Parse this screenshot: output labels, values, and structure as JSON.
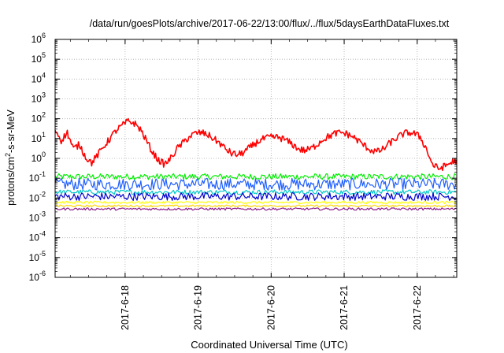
{
  "chart_data": {
    "type": "line",
    "title": "/data/run/goesPlots/archive/2017-06-22/13:00/flux/../flux/5daysEarthDataFluxes.txt",
    "xlabel": "Coordinated Universal Time (UTC)",
    "ylabel": "protons/cm²-s-sr-MeV",
    "ylabel_parts": {
      "before": "protons/cm",
      "sup": "2",
      "after": "-s-sr-MeV"
    },
    "y_scale": "log",
    "ylim": [
      1e-06,
      1000000.0
    ],
    "y_tick_labels": [
      {
        "base": "10",
        "exp": "-6",
        "value": 1e-06
      },
      {
        "base": "10",
        "exp": "-5",
        "value": 1e-05
      },
      {
        "base": "10",
        "exp": "-4",
        "value": 0.0001
      },
      {
        "base": "10",
        "exp": "-3",
        "value": 0.001
      },
      {
        "base": "10",
        "exp": "-2",
        "value": 0.01
      },
      {
        "base": "10",
        "exp": "-1",
        "value": 0.1
      },
      {
        "base": "10",
        "exp": "0",
        "value": 1
      },
      {
        "base": "10",
        "exp": "1",
        "value": 10
      },
      {
        "base": "10",
        "exp": "2",
        "value": 100
      },
      {
        "base": "10",
        "exp": "3",
        "value": 1000
      },
      {
        "base": "10",
        "exp": "4",
        "value": 10000
      },
      {
        "base": "10",
        "exp": "5",
        "value": 100000
      },
      {
        "base": "10",
        "exp": "6",
        "value": 1000000
      }
    ],
    "xlim": [
      "2017-06-17T01:00",
      "2017-06-22T13:00"
    ],
    "x_tick_labels": [
      {
        "label": "2017-6-18",
        "time": "2017-06-18T00:00"
      },
      {
        "label": "2017-6-19",
        "time": "2017-06-19T00:00"
      },
      {
        "label": "2017-6-20",
        "time": "2017-06-20T00:00"
      },
      {
        "label": "2017-6-21",
        "time": "2017-06-21T00:00"
      },
      {
        "label": "2017-6-22",
        "time": "2017-06-22T00:00"
      }
    ],
    "grid": true,
    "series": [
      {
        "color": "#ff0000",
        "points": [
          [
            "2017-06-17T01:00",
            30
          ],
          [
            "2017-06-17T03:00",
            8
          ],
          [
            "2017-06-17T05:00",
            20
          ],
          [
            "2017-06-17T07:00",
            3
          ],
          [
            "2017-06-17T09:00",
            5
          ],
          [
            "2017-06-17T11:00",
            1.2
          ],
          [
            "2017-06-17T13:00",
            0.6
          ],
          [
            "2017-06-17T15:00",
            1.5
          ],
          [
            "2017-06-17T17:00",
            4
          ],
          [
            "2017-06-17T19:00",
            10
          ],
          [
            "2017-06-17T21:00",
            25
          ],
          [
            "2017-06-17T23:00",
            45
          ],
          [
            "2017-06-18T01:00",
            75
          ],
          [
            "2017-06-18T03:00",
            60
          ],
          [
            "2017-06-18T05:00",
            30
          ],
          [
            "2017-06-18T07:00",
            8
          ],
          [
            "2017-06-18T09:00",
            2
          ],
          [
            "2017-06-18T11:00",
            0.8
          ],
          [
            "2017-06-18T13:00",
            0.5
          ],
          [
            "2017-06-18T15:00",
            1
          ],
          [
            "2017-06-18T17:00",
            3
          ],
          [
            "2017-06-18T19:00",
            6
          ],
          [
            "2017-06-18T21:00",
            12
          ],
          [
            "2017-06-18T23:00",
            18
          ],
          [
            "2017-06-19T01:00",
            20
          ],
          [
            "2017-06-19T03:00",
            16
          ],
          [
            "2017-06-19T05:00",
            10
          ],
          [
            "2017-06-19T07:00",
            6
          ],
          [
            "2017-06-19T09:00",
            3
          ],
          [
            "2017-06-19T11:00",
            1.8
          ],
          [
            "2017-06-19T13:00",
            1.5
          ],
          [
            "2017-06-19T15:00",
            2
          ],
          [
            "2017-06-19T17:00",
            3.5
          ],
          [
            "2017-06-19T19:00",
            6
          ],
          [
            "2017-06-19T21:00",
            9
          ],
          [
            "2017-06-19T23:00",
            11
          ],
          [
            "2017-06-20T01:00",
            12
          ],
          [
            "2017-06-20T03:00",
            11
          ],
          [
            "2017-06-20T05:00",
            8
          ],
          [
            "2017-06-20T07:00",
            5
          ],
          [
            "2017-06-20T09:00",
            3
          ],
          [
            "2017-06-20T11:00",
            2.5
          ],
          [
            "2017-06-20T13:00",
            3
          ],
          [
            "2017-06-20T15:00",
            5
          ],
          [
            "2017-06-20T17:00",
            9
          ],
          [
            "2017-06-20T19:00",
            13
          ],
          [
            "2017-06-20T21:00",
            18
          ],
          [
            "2017-06-20T23:00",
            20
          ],
          [
            "2017-06-21T01:00",
            17
          ],
          [
            "2017-06-21T03:00",
            12
          ],
          [
            "2017-06-21T05:00",
            7
          ],
          [
            "2017-06-21T07:00",
            4
          ],
          [
            "2017-06-21T09:00",
            2.5
          ],
          [
            "2017-06-21T11:00",
            2.2
          ],
          [
            "2017-06-21T13:00",
            3
          ],
          [
            "2017-06-21T15:00",
            6
          ],
          [
            "2017-06-21T17:00",
            10
          ],
          [
            "2017-06-21T19:00",
            16
          ],
          [
            "2017-06-21T21:00",
            20
          ],
          [
            "2017-06-21T23:00",
            18
          ],
          [
            "2017-06-22T01:00",
            12
          ],
          [
            "2017-06-22T03:00",
            3
          ],
          [
            "2017-06-22T05:00",
            0.5
          ],
          [
            "2017-06-22T07:00",
            0.3
          ],
          [
            "2017-06-22T09:00",
            0.4
          ],
          [
            "2017-06-22T11:00",
            0.6
          ],
          [
            "2017-06-22T13:00",
            0.8
          ]
        ]
      },
      {
        "color": "#00ee00",
        "level": 0.12,
        "spread": 0.15
      },
      {
        "color": "#1f5fff",
        "level": 0.05,
        "spread": 0.3
      },
      {
        "color": "#00c8c8",
        "level": 0.02,
        "spread": 0.12
      },
      {
        "color": "#0000d0",
        "level": 0.012,
        "spread": 0.2
      },
      {
        "color": "#ffff00",
        "level": 0.006,
        "spread": 0.06
      },
      {
        "color": "#ffd700",
        "level": 0.004,
        "spread": 0.05
      },
      {
        "color": "#8b1a89",
        "level": 0.0028,
        "spread": 0.06
      }
    ]
  }
}
